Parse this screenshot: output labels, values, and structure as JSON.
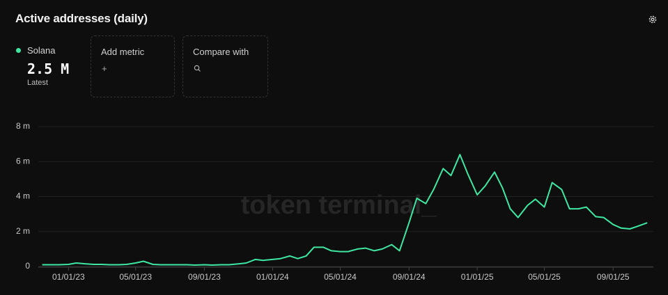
{
  "header": {
    "title": "Active addresses (daily)",
    "latest": {
      "value": "2.5 M",
      "caption": "Latest"
    },
    "add_metric": {
      "label": "Add metric",
      "icon": "+"
    },
    "compare": {
      "label": "Compare with"
    }
  },
  "watermark": "token terminal_",
  "chart_data": {
    "type": "line",
    "x": [
      "11/15/22",
      "12/01/22",
      "12/15/22",
      "01/01/23",
      "01/15/23",
      "02/01/23",
      "02/15/23",
      "03/01/23",
      "03/15/23",
      "04/01/23",
      "04/15/23",
      "05/01/23",
      "05/15/23",
      "06/01/23",
      "06/15/23",
      "07/01/23",
      "07/15/23",
      "08/01/23",
      "08/15/23",
      "09/01/23",
      "09/15/23",
      "10/01/23",
      "10/15/23",
      "11/01/23",
      "11/15/23",
      "12/01/23",
      "12/15/23",
      "01/01/24",
      "01/15/24",
      "02/01/24",
      "02/15/24",
      "03/01/24",
      "03/15/24",
      "04/01/24",
      "04/15/24",
      "05/01/24",
      "05/15/24",
      "06/01/24",
      "06/15/24",
      "07/01/24",
      "07/15/24",
      "08/01/24",
      "08/15/24",
      "09/01/24",
      "09/15/24",
      "10/01/24",
      "10/15/24",
      "11/01/24",
      "11/15/24",
      "12/01/24",
      "12/15/24",
      "01/01/25",
      "01/15/25",
      "02/01/25",
      "02/15/25",
      "03/01/25",
      "03/15/25",
      "04/01/25",
      "04/15/25",
      "05/01/25",
      "05/15/25",
      "06/01/25",
      "06/15/25",
      "07/01/25",
      "07/15/25",
      "08/01/25",
      "08/15/25",
      "09/01/25",
      "09/15/25",
      "10/01/25",
      "10/15/25",
      "11/01/25"
    ],
    "series": [
      {
        "name": "Solana",
        "color": "#3ee8a2",
        "values": [
          0.1,
          0.1,
          0.1,
          0.12,
          0.2,
          0.15,
          0.12,
          0.12,
          0.1,
          0.1,
          0.12,
          0.2,
          0.3,
          0.12,
          0.1,
          0.1,
          0.1,
          0.1,
          0.08,
          0.1,
          0.08,
          0.1,
          0.1,
          0.15,
          0.2,
          0.4,
          0.35,
          0.4,
          0.45,
          0.6,
          0.45,
          0.6,
          1.1,
          1.1,
          0.9,
          0.85,
          0.85,
          1.0,
          1.05,
          0.9,
          1.0,
          1.25,
          0.9,
          2.5,
          3.9,
          3.6,
          4.4,
          5.6,
          5.2,
          6.4,
          5.3,
          4.1,
          4.6,
          5.4,
          4.5,
          3.3,
          2.8,
          3.5,
          3.85,
          3.4,
          4.8,
          4.4,
          3.3,
          3.3,
          3.4,
          2.85,
          2.8,
          2.4,
          2.2,
          2.15,
          2.3,
          2.5
        ]
      }
    ],
    "xlim": [
      "11/08/22",
      "11/12/25"
    ],
    "xticks": [
      "01/01/23",
      "05/01/23",
      "09/01/23",
      "01/01/24",
      "05/01/24",
      "09/01/24",
      "01/01/25",
      "05/01/25",
      "09/01/25"
    ],
    "ylim": [
      0,
      8
    ],
    "yticks": [
      {
        "value": 0,
        "label": "0"
      },
      {
        "value": 2,
        "label": "2 m"
      },
      {
        "value": 4,
        "label": "4 m"
      },
      {
        "value": 6,
        "label": "6 m"
      },
      {
        "value": 8,
        "label": "8 m"
      }
    ],
    "grid": true
  }
}
